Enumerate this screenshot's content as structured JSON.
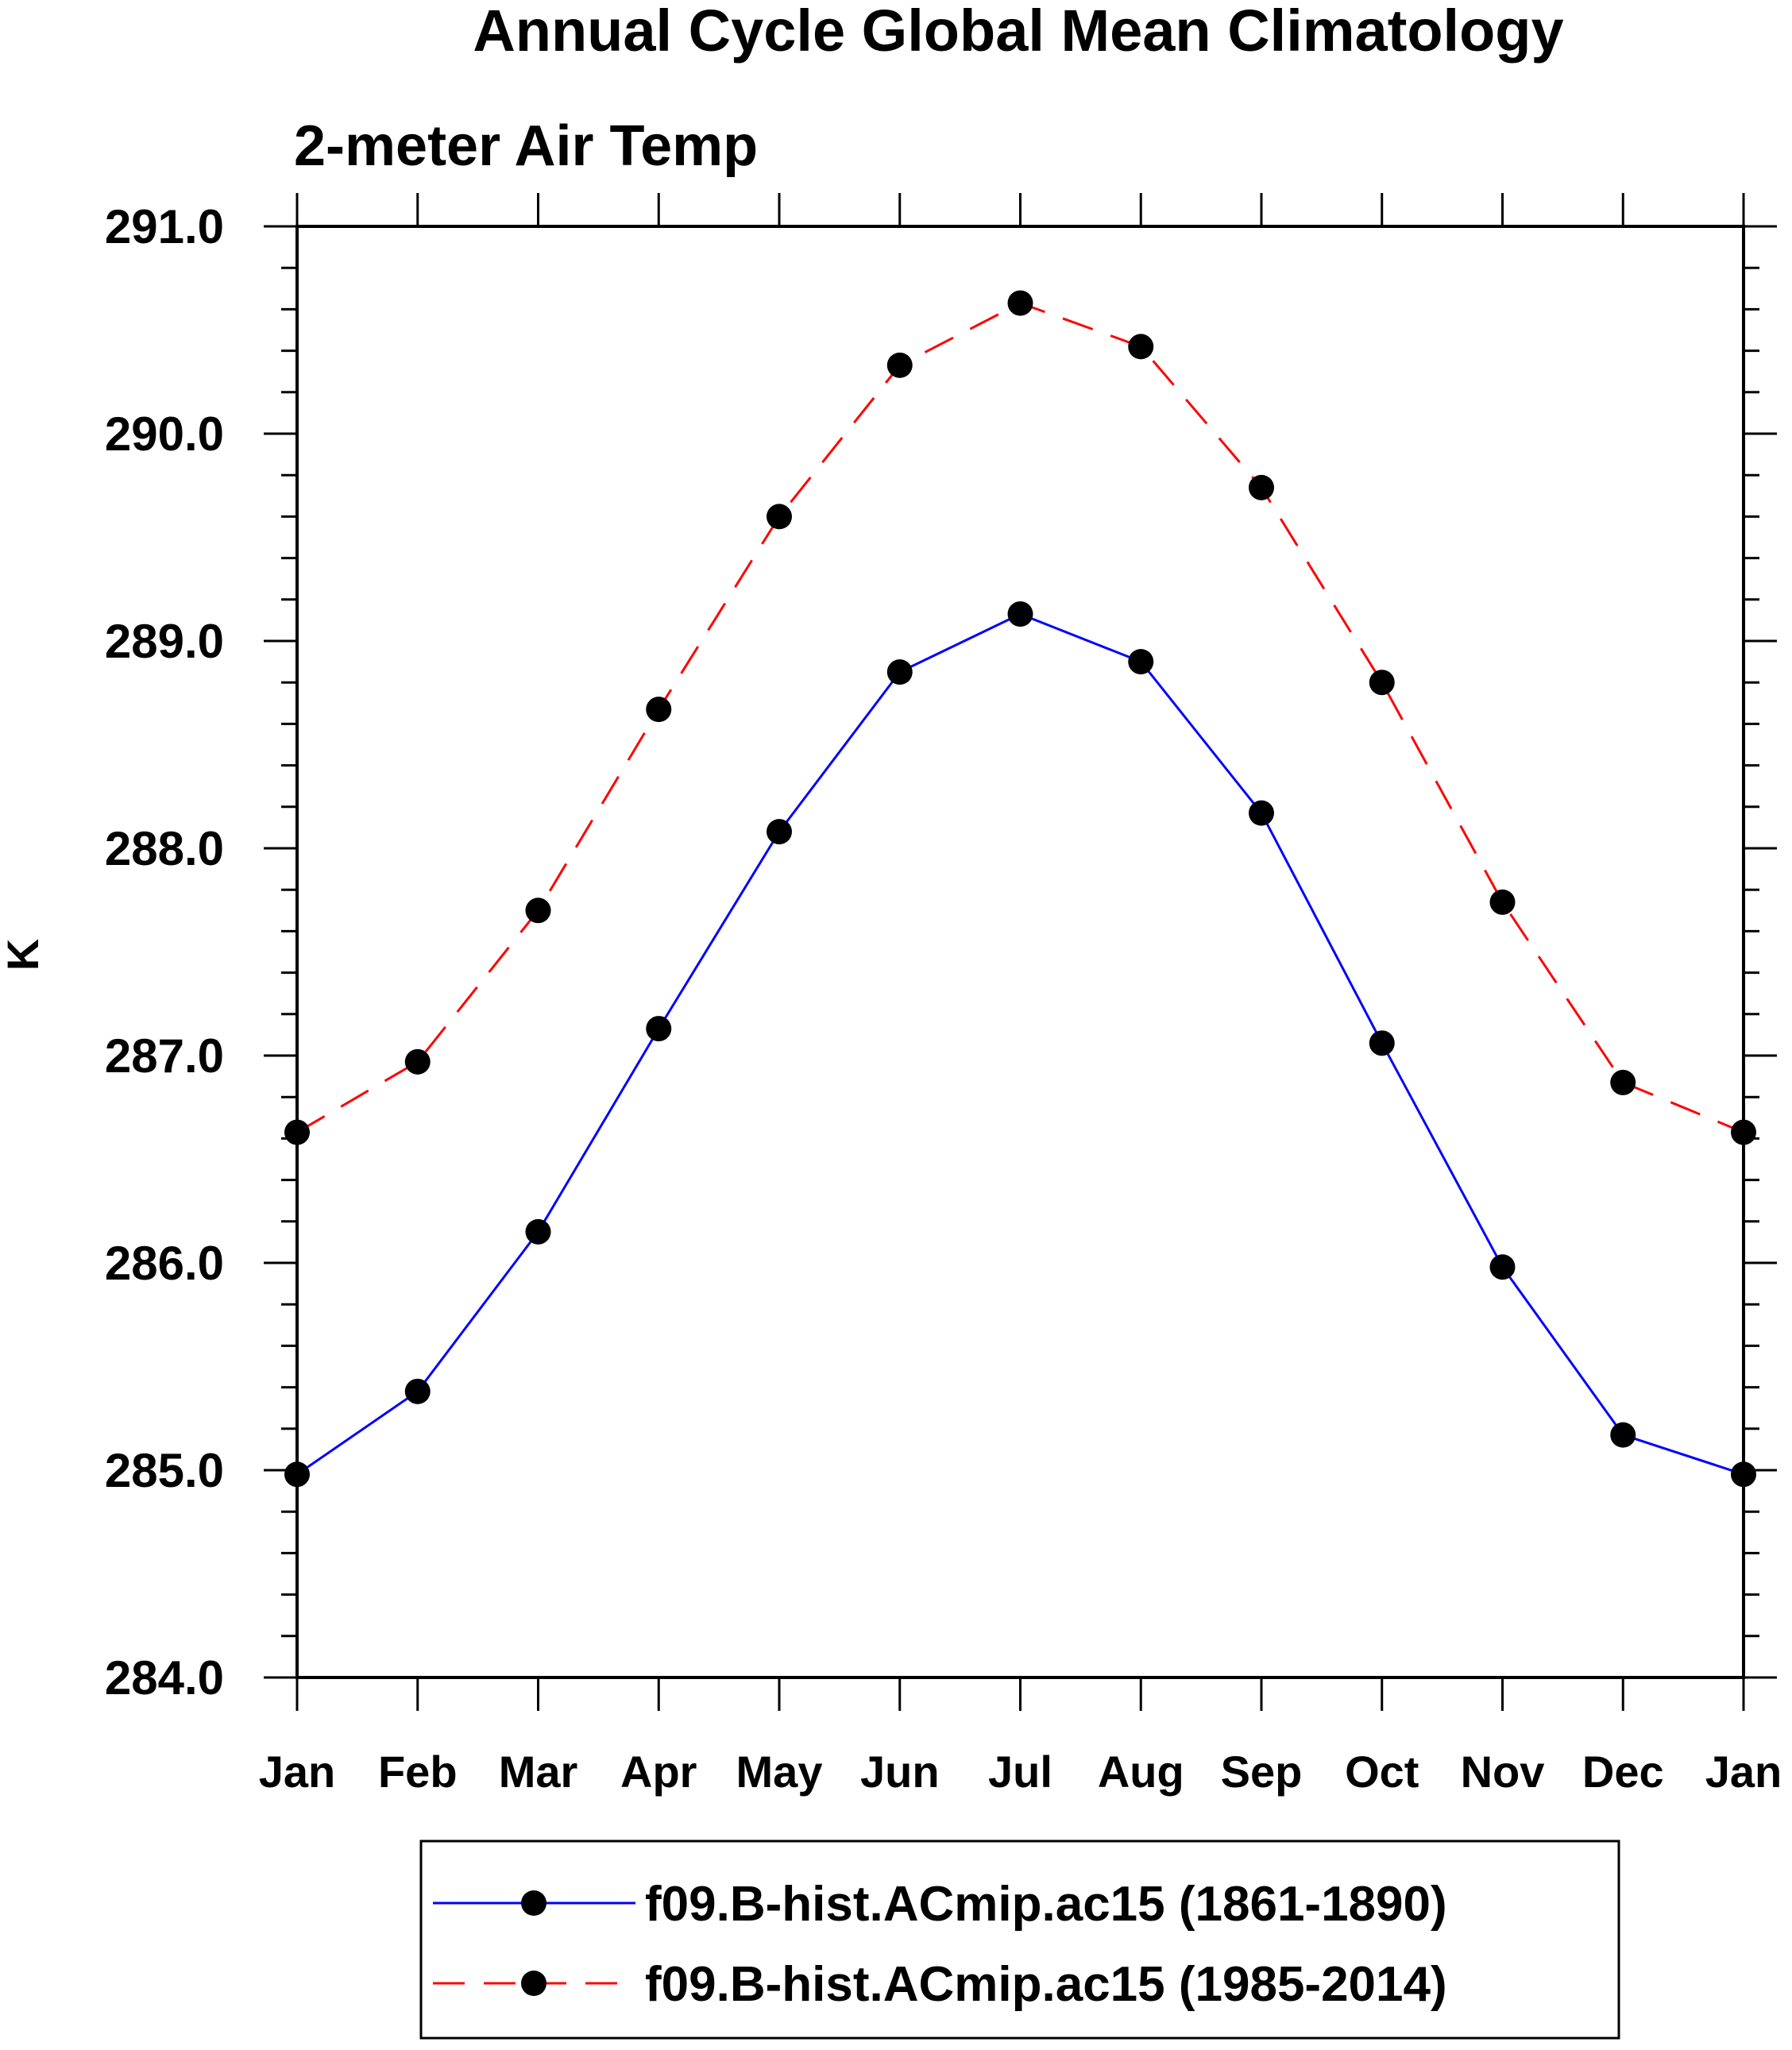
{
  "chart_data": {
    "type": "line",
    "title": "Annual Cycle Global Mean Climatology",
    "subtitle": "2-meter Air Temp",
    "xlabel": "",
    "ylabel": "K",
    "categories": [
      "Jan",
      "Feb",
      "Mar",
      "Apr",
      "May",
      "Jun",
      "Jul",
      "Aug",
      "Sep",
      "Oct",
      "Nov",
      "Dec",
      "Jan"
    ],
    "ylim": [
      284.0,
      291.0
    ],
    "yticks": [
      "284.0",
      "285.0",
      "286.0",
      "287.0",
      "288.0",
      "289.0",
      "290.0",
      "291.0"
    ],
    "yminor_step": 0.2,
    "grid": false,
    "legend_position": "bottom-center",
    "marker": "filled-circle",
    "series": [
      {
        "name": "f09.B-hist.ACmip.ac15 (1861-1890)",
        "color": "#0000ff",
        "line_style": "solid",
        "values": [
          284.98,
          285.38,
          286.15,
          287.13,
          288.08,
          288.85,
          289.13,
          288.9,
          288.17,
          287.06,
          285.98,
          285.17,
          284.98
        ]
      },
      {
        "name": "f09.B-hist.ACmip.ac15 (1985-2014)",
        "color": "#ff0000",
        "line_style": "dashed",
        "values": [
          286.63,
          286.97,
          287.7,
          288.67,
          289.6,
          290.33,
          290.63,
          290.42,
          289.74,
          288.8,
          287.74,
          286.87,
          286.63
        ]
      }
    ]
  }
}
